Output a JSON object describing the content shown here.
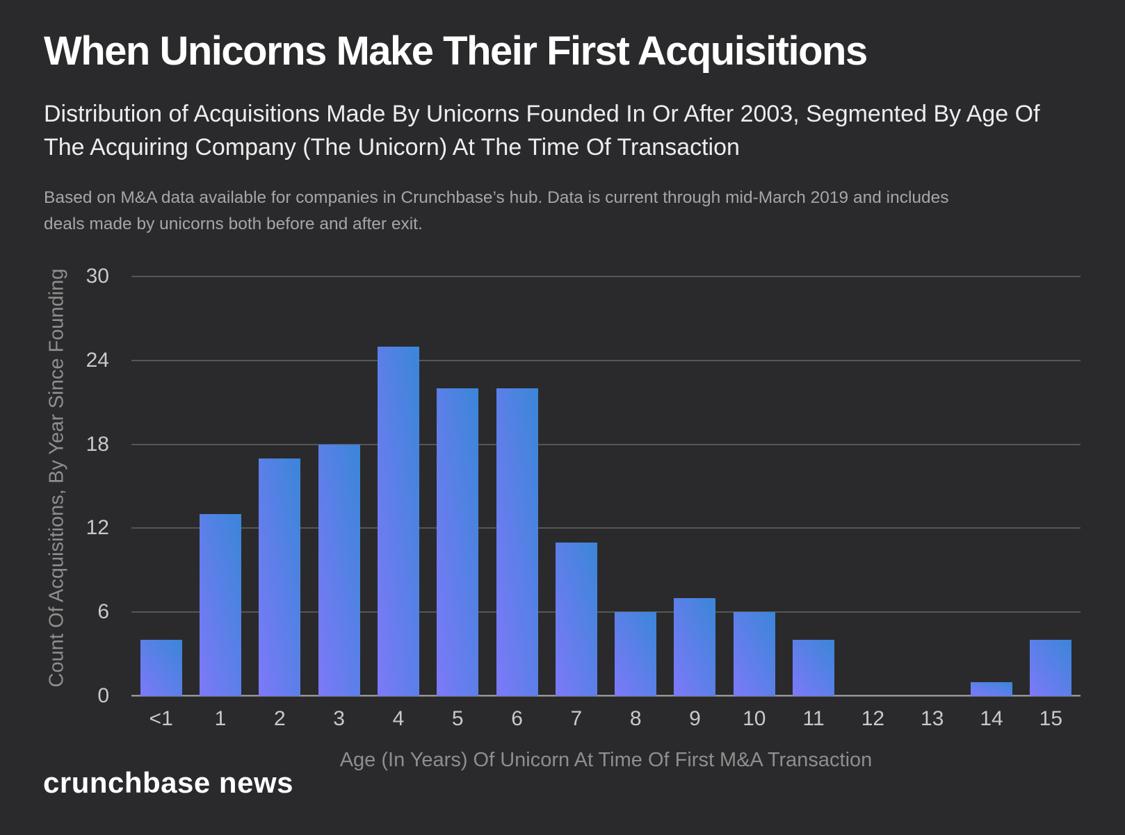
{
  "header": {
    "title": "When Unicorns Make Their First Acquisitions",
    "subtitle": "Distribution of Acquisitions Made By Unicorns Founded In Or After 2003, Segmented By Age Of The Acquiring Company (The Unicorn) At The Time Of Transaction",
    "note": "Based on M&A data available for companies in Crunchbase’s hub. Data is current through mid-March 2019 and includes deals made by unicorns both before and after exit."
  },
  "chart_data": {
    "type": "bar",
    "title": "When Unicorns Make Their First Acquisitions",
    "categories": [
      "<1",
      "1",
      "2",
      "3",
      "4",
      "5",
      "6",
      "7",
      "8",
      "9",
      "10",
      "11",
      "12",
      "13",
      "14",
      "15"
    ],
    "values": [
      4,
      13,
      17,
      18,
      25,
      22,
      22,
      11,
      6,
      7,
      6,
      4,
      0,
      0,
      1,
      4
    ],
    "xlabel": "Age (In Years) Of Unicorn At Time Of First M&A Transaction",
    "ylabel": "Count Of Acquisitions, By Year Since Founding",
    "ylim": [
      0,
      30
    ],
    "yticks": [
      0,
      6,
      12,
      18,
      24,
      30
    ],
    "grid": true,
    "legend": false,
    "bar_gradient": {
      "bottom_left": "#7d79f8",
      "top_right": "#3a86d8"
    }
  },
  "footer": {
    "logo": "crunchbase news"
  },
  "colors": {
    "background": "#2a2a2c",
    "title_text": "#ffffff",
    "subtitle_text": "#ededed",
    "note_text": "#a6a6a6",
    "tick_text": "#c9c9c9",
    "axis_title_text": "#8e8e8e",
    "axis_line": "#b0b0b0"
  }
}
